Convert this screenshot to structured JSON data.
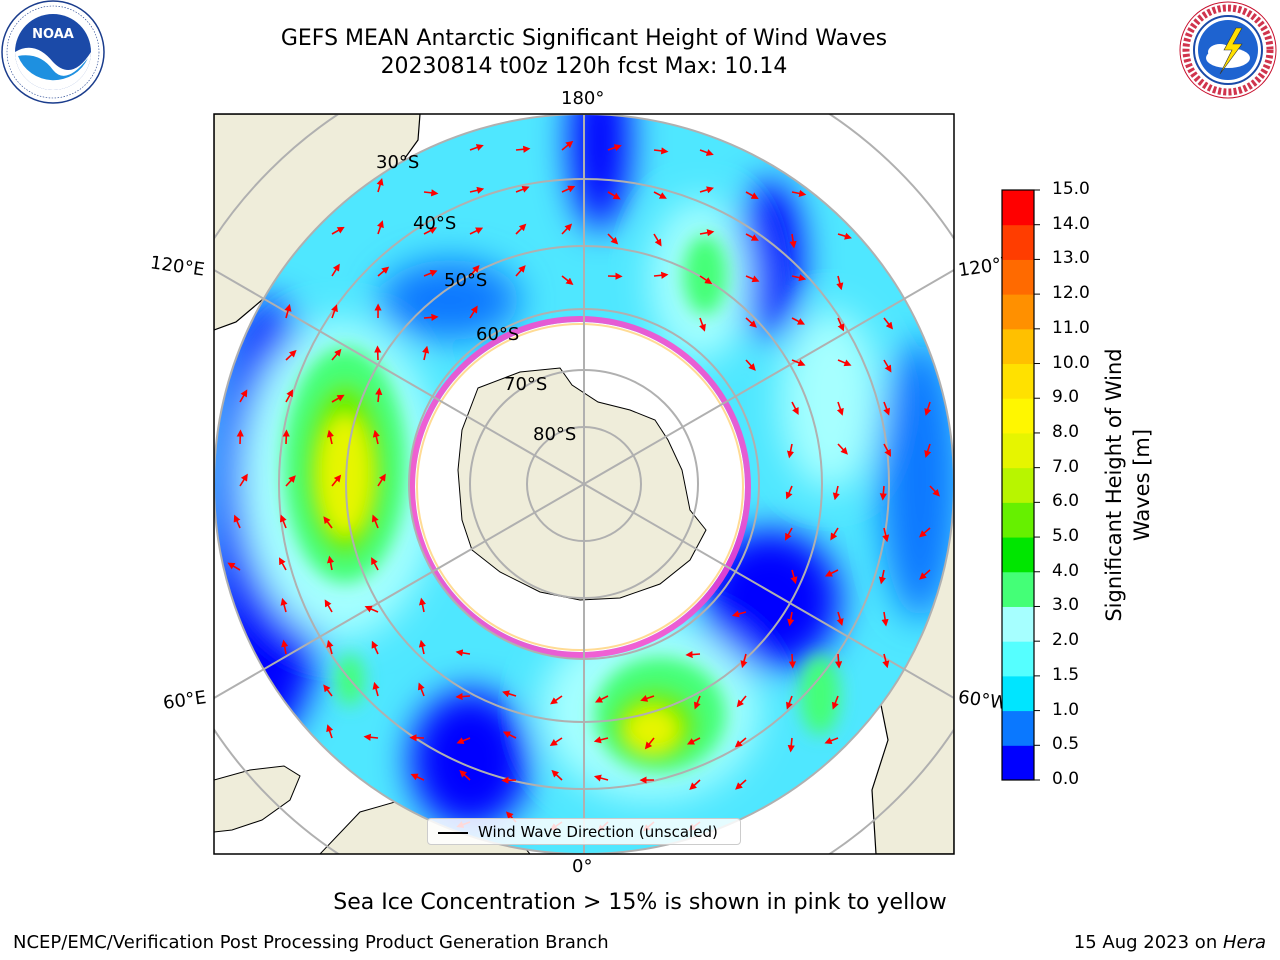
{
  "header": {
    "title_line1": "GEFS MEAN Antarctic Significant Height of Wind Waves",
    "title_line2": "20230814 t00z 120h fcst   Max: 10.14"
  },
  "logos": {
    "left": {
      "name": "noaa-logo",
      "text": "NOAA",
      "ring_text": "NATIONAL OCEANIC AND ATMOSPHERIC ADMINISTRATION • U.S. DEPARTMENT OF COMMERCE"
    },
    "right": {
      "name": "nws-logo",
      "ring_text": "NATIONAL WEATHER SERVICE"
    }
  },
  "map": {
    "projection": "south-polar-stereographic",
    "longitude_labels": [
      "180°",
      "120°E",
      "120°W",
      "60°E",
      "60°W",
      "0°"
    ],
    "latitude_labels": [
      "30°S",
      "40°S",
      "50°S",
      "60°S",
      "70°S",
      "80°S"
    ],
    "legend_label": "Wind Wave Direction (unscaled)",
    "colors": {
      "land": "#efedda",
      "arrows": "#ff0000",
      "grid": "#b0b0b0",
      "sea_ice": "#ff44cc"
    }
  },
  "colorbar": {
    "title": "Significant Height of Wind Waves [m]",
    "ticks": [
      "0.0",
      "0.5",
      "1.0",
      "1.5",
      "2.0",
      "3.0",
      "4.0",
      "5.0",
      "6.0",
      "7.0",
      "8.0",
      "9.0",
      "10.0",
      "11.0",
      "12.0",
      "13.0",
      "14.0",
      "15.0"
    ],
    "colors": [
      "#0000ff",
      "#0a78ff",
      "#00e5ff",
      "#55ffff",
      "#a6ffff",
      "#44ff77",
      "#00e600",
      "#66f000",
      "#b8f500",
      "#e6f500",
      "#fff700",
      "#ffe100",
      "#ffc000",
      "#ff9000",
      "#ff6a00",
      "#ff3d00",
      "#ff0000"
    ]
  },
  "notes": {
    "sea_ice": "Sea Ice Concentration > 15% is shown in pink to yellow",
    "credit": "NCEP/EMC/Verification Post Processing Product Generation Branch",
    "date_prefix": "15 Aug 2023 on ",
    "host": "Hera"
  }
}
